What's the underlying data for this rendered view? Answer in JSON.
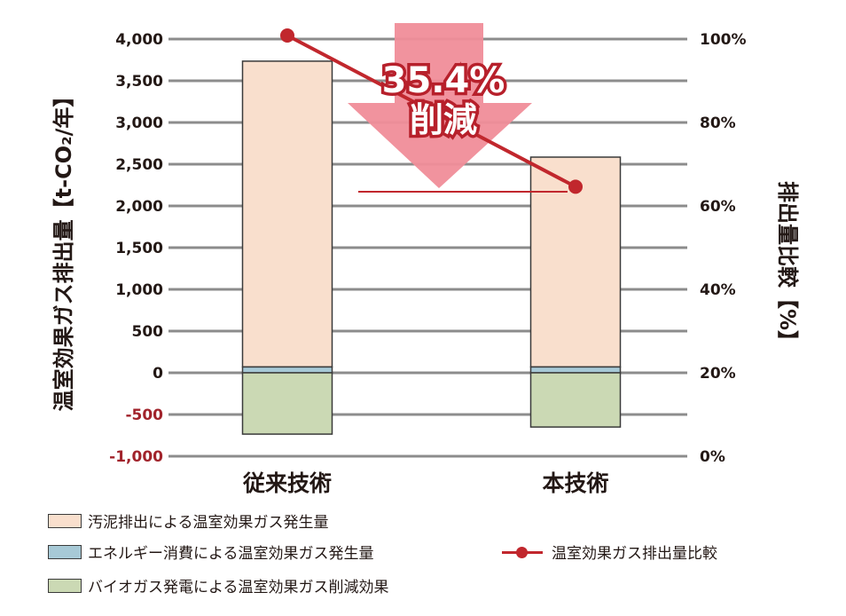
{
  "chart_data": {
    "type": "bar",
    "subtype": "stacked bar with line overlay (dual axis)",
    "categories": [
      "従来技術",
      "本技術"
    ],
    "series": [
      {
        "name": "汚泥排出による温室効果ガス発生量",
        "axis": "left",
        "color": "#f9dfcd",
        "values": [
          3665,
          2515
        ]
      },
      {
        "name": "エネルギー消費による温室効果ガス発生量",
        "axis": "left",
        "color": "#a7c9d6",
        "values": [
          70,
          70
        ]
      },
      {
        "name": "バイオガス発電による温室効果ガス削減効果",
        "axis": "left",
        "color": "#cbd9b4",
        "values": [
          -735,
          -650
        ]
      },
      {
        "name": "温室効果ガス排出量比較",
        "type": "line",
        "axis": "right",
        "color": "#c1272d",
        "values": [
          100,
          64.6
        ]
      }
    ],
    "left_axis": {
      "label": "温室効果ガス排出量【t-CO₂/年】",
      "ticks": [
        "4,000",
        "3,500",
        "3,000",
        "2,500",
        "2,000",
        "1,500",
        "1,000",
        "500",
        "0",
        "-500",
        "-1,000"
      ],
      "negative_tick_color": "#a1232b",
      "ylim": [
        -1000,
        4000
      ]
    },
    "right_axis": {
      "label": "排出量比較【%】",
      "ticks": [
        "100%",
        "80%",
        "60%",
        "40%",
        "20%",
        "0%"
      ],
      "ylim": [
        0,
        100
      ]
    },
    "annotation": {
      "value": "35.4%",
      "text": "削減",
      "arrow_color": "#f08d99"
    },
    "grid": true,
    "legend_position": "bottom"
  },
  "legend": {
    "items": [
      {
        "label": "汚泥排出による温室効果ガス発生量",
        "color": "#f9dfcd"
      },
      {
        "label": "エネルギー消費による温室効果ガス発生量",
        "color": "#a7c9d6"
      },
      {
        "label": "バイオガス発電による温室効果ガス削減効果",
        "color": "#cbd9b4"
      },
      {
        "label": "温室効果ガス排出量比較",
        "color": "#c1272d"
      }
    ]
  }
}
